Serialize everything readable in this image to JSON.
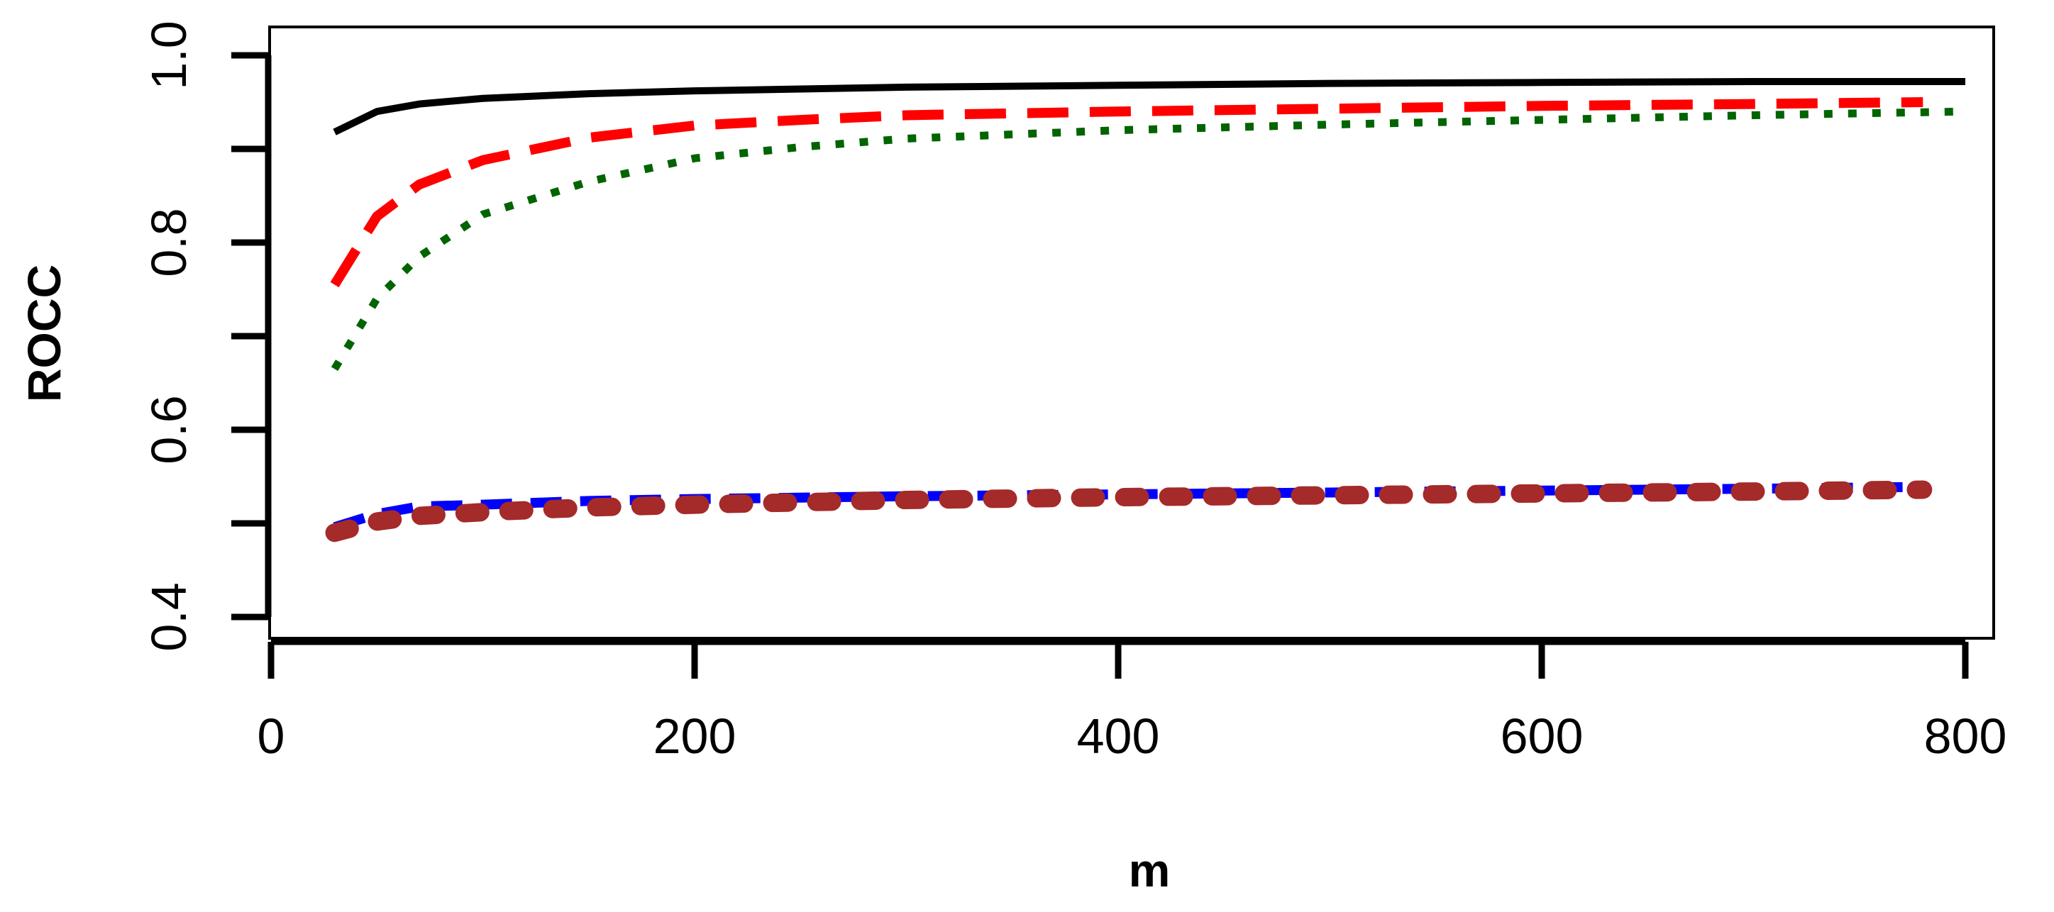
{
  "chart_data": {
    "type": "line",
    "title": "",
    "xlabel": "m",
    "ylabel": "ROCC",
    "xlim": [
      0,
      800
    ],
    "ylim": [
      0.4,
      1.0
    ],
    "xticks": [
      0,
      200,
      400,
      600,
      800
    ],
    "xtick_labels": [
      "0",
      "200",
      "400",
      "600",
      "800"
    ],
    "yticks": [
      0.4,
      0.5,
      0.6,
      0.7,
      0.8,
      0.9,
      1.0
    ],
    "ytick_labels": [
      "0.4",
      "",
      "0.6",
      "",
      "0.8",
      "",
      "1.0"
    ],
    "grid": false,
    "legend": "none",
    "series": [
      {
        "name": "black solid",
        "color": "#000000",
        "style": "solid",
        "x": [
          30,
          50,
          70,
          100,
          150,
          200,
          250,
          300,
          400,
          500,
          600,
          700,
          800
        ],
        "y": [
          0.918,
          0.94,
          0.948,
          0.954,
          0.959,
          0.962,
          0.964,
          0.966,
          0.968,
          0.97,
          0.971,
          0.972,
          0.972
        ]
      },
      {
        "name": "red dashed",
        "color": "#ff0000",
        "style": "longdash",
        "x": [
          30,
          50,
          70,
          100,
          150,
          200,
          250,
          300,
          400,
          500,
          600,
          700,
          780
        ],
        "y": [
          0.755,
          0.828,
          0.862,
          0.888,
          0.912,
          0.925,
          0.931,
          0.936,
          0.94,
          0.943,
          0.946,
          0.948,
          0.95
        ]
      },
      {
        "name": "green dotted",
        "color": "#006400",
        "style": "dotted",
        "x": [
          30,
          50,
          70,
          100,
          150,
          200,
          250,
          300,
          400,
          500,
          600,
          700,
          800
        ],
        "y": [
          0.665,
          0.74,
          0.785,
          0.83,
          0.865,
          0.89,
          0.902,
          0.911,
          0.92,
          0.926,
          0.931,
          0.936,
          0.94
        ]
      },
      {
        "name": "blue dashed",
        "color": "#0000ff",
        "style": "dashed",
        "x": [
          30,
          50,
          70,
          100,
          150,
          200,
          300,
          400,
          500,
          600,
          700,
          780
        ],
        "y": [
          0.496,
          0.51,
          0.518,
          0.52,
          0.524,
          0.526,
          0.529,
          0.531,
          0.533,
          0.535,
          0.537,
          0.539
        ]
      },
      {
        "name": "brown dashed",
        "color": "#a52a2a",
        "style": "heavydash",
        "x": [
          30,
          50,
          70,
          100,
          150,
          200,
          300,
          400,
          500,
          600,
          700,
          780
        ],
        "y": [
          0.49,
          0.502,
          0.508,
          0.512,
          0.517,
          0.52,
          0.525,
          0.528,
          0.53,
          0.532,
          0.534,
          0.536
        ]
      }
    ]
  }
}
